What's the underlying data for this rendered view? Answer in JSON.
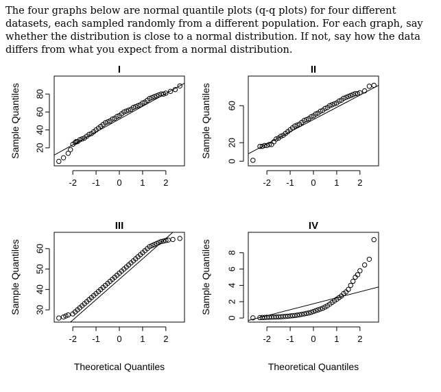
{
  "question": {
    "text": "The four graphs below are normal quantile plots (q-q plots) for four different datasets, each sampled randomly from a different population. For each graph, say whether the distribution is close to a normal distribution. If not, say how the data differs from what you expect from a normal distribution."
  },
  "colors": {
    "ink": "#000000",
    "background": "#ffffff"
  },
  "chart_data": [
    {
      "type": "scatter",
      "title": "I",
      "xlabel": "",
      "ylabel": "Sample Quantiles",
      "xticks": [
        "-2",
        "-1",
        "0",
        "1",
        "2"
      ],
      "yticks": [
        "20",
        "40",
        "60",
        "80"
      ],
      "xlim": [
        -2.8,
        2.8
      ],
      "ylim": [
        0,
        100
      ],
      "reference_line": {
        "x": [
          -2.8,
          2.8
        ],
        "y": [
          12,
          92
        ]
      },
      "x": [
        -2.6,
        -2.4,
        -2.2,
        -2.1,
        -2.0,
        -1.9,
        -1.85,
        -1.8,
        -1.7,
        -1.6,
        -1.5,
        -1.4,
        -1.3,
        -1.2,
        -1.1,
        -1.0,
        -0.9,
        -0.8,
        -0.7,
        -0.6,
        -0.5,
        -0.4,
        -0.3,
        -0.2,
        -0.1,
        0.0,
        0.1,
        0.2,
        0.3,
        0.4,
        0.5,
        0.6,
        0.7,
        0.8,
        0.9,
        1.0,
        1.1,
        1.2,
        1.3,
        1.4,
        1.5,
        1.6,
        1.7,
        1.8,
        1.9,
        2.0,
        2.2,
        2.4,
        2.6
      ],
      "y": [
        5,
        9,
        14,
        18,
        24,
        26,
        27,
        27,
        29,
        30,
        31,
        33,
        35,
        36,
        38,
        40,
        42,
        44,
        46,
        48,
        49,
        50,
        52,
        53,
        55,
        56,
        58,
        60,
        61,
        62,
        63,
        65,
        66,
        67,
        68,
        70,
        71,
        73,
        75,
        76,
        77,
        78,
        79,
        80,
        80,
        81,
        83,
        85,
        89
      ]
    },
    {
      "type": "scatter",
      "title": "II",
      "xlabel": "",
      "ylabel": "Sample Quantiles",
      "xticks": [
        "-2",
        "-1",
        "0",
        "1",
        "2"
      ],
      "yticks": [
        "0",
        "20",
        "60"
      ],
      "xlim": [
        -2.8,
        2.8
      ],
      "ylim": [
        -5,
        92
      ],
      "reference_line": {
        "x": [
          -2.8,
          2.8
        ],
        "y": [
          8,
          82
        ]
      },
      "x": [
        -2.6,
        -2.3,
        -2.2,
        -2.1,
        -2.0,
        -1.9,
        -1.8,
        -1.7,
        -1.6,
        -1.5,
        -1.4,
        -1.3,
        -1.2,
        -1.1,
        -1.0,
        -0.9,
        -0.8,
        -0.7,
        -0.6,
        -0.5,
        -0.4,
        -0.3,
        -0.2,
        -0.1,
        0.0,
        0.1,
        0.2,
        0.3,
        0.4,
        0.5,
        0.6,
        0.7,
        0.8,
        0.9,
        1.0,
        1.1,
        1.2,
        1.3,
        1.4,
        1.5,
        1.6,
        1.7,
        1.8,
        1.9,
        2.0,
        2.2,
        2.4,
        2.6
      ],
      "y": [
        1,
        16,
        16,
        17,
        17,
        18,
        18,
        21,
        24,
        25,
        27,
        28,
        30,
        32,
        34,
        36,
        38,
        39,
        40,
        42,
        44,
        45,
        46,
        48,
        49,
        51,
        52,
        54,
        55,
        57,
        58,
        60,
        61,
        62,
        63,
        65,
        66,
        68,
        69,
        70,
        71,
        72,
        73,
        73,
        74,
        76,
        81,
        82
      ]
    },
    {
      "type": "scatter",
      "title": "III",
      "xlabel": "Theoretical Quantiles",
      "ylabel": "Sample Quantiles",
      "xticks": [
        "-2",
        "-1",
        "0",
        "1",
        "2"
      ],
      "yticks": [
        "30",
        "40",
        "50",
        "60"
      ],
      "xlim": [
        -2.8,
        2.8
      ],
      "ylim": [
        24,
        68
      ],
      "reference_line": {
        "x": [
          -2.1,
          2.3
        ],
        "y": [
          24,
          68
        ]
      },
      "x": [
        -2.6,
        -2.4,
        -2.3,
        -2.2,
        -2.0,
        -1.9,
        -1.8,
        -1.7,
        -1.6,
        -1.5,
        -1.4,
        -1.3,
        -1.2,
        -1.1,
        -1.0,
        -0.9,
        -0.8,
        -0.7,
        -0.6,
        -0.5,
        -0.4,
        -0.3,
        -0.2,
        -0.1,
        0.0,
        0.1,
        0.2,
        0.3,
        0.4,
        0.5,
        0.6,
        0.7,
        0.8,
        0.9,
        1.0,
        1.1,
        1.2,
        1.3,
        1.4,
        1.5,
        1.6,
        1.7,
        1.8,
        1.9,
        2.0,
        2.1,
        2.3,
        2.6
      ],
      "y": [
        26,
        26.5,
        27,
        27.5,
        28,
        29,
        30,
        31,
        32,
        33,
        34,
        35,
        36,
        37,
        38,
        39,
        40,
        41,
        42,
        43,
        44,
        45,
        46,
        47,
        48,
        49,
        50,
        51,
        52,
        53,
        54,
        55,
        56,
        57,
        58,
        59,
        60,
        61,
        61.5,
        62,
        62.5,
        63,
        63.5,
        63.7,
        64,
        64.2,
        64.5,
        65
      ]
    },
    {
      "type": "scatter",
      "title": "IV",
      "xlabel": "Theoretical Quantiles",
      "ylabel": "Sample Quantiles",
      "xticks": [
        "-2",
        "-1",
        "0",
        "1",
        "2"
      ],
      "yticks": [
        "0",
        "2",
        "4",
        "6",
        "8"
      ],
      "xlim": [
        -2.8,
        2.8
      ],
      "ylim": [
        -0.5,
        10.5
      ],
      "reference_line": {
        "x": [
          -2.8,
          2.8
        ],
        "y": [
          -0.3,
          3.8
        ]
      },
      "x": [
        -2.6,
        -2.3,
        -2.2,
        -2.1,
        -2.0,
        -1.9,
        -1.8,
        -1.7,
        -1.6,
        -1.5,
        -1.4,
        -1.3,
        -1.2,
        -1.1,
        -1.0,
        -0.9,
        -0.8,
        -0.7,
        -0.6,
        -0.5,
        -0.4,
        -0.3,
        -0.2,
        -0.1,
        0.0,
        0.1,
        0.2,
        0.3,
        0.4,
        0.5,
        0.6,
        0.7,
        0.8,
        0.9,
        1.0,
        1.1,
        1.2,
        1.3,
        1.4,
        1.5,
        1.6,
        1.7,
        1.8,
        1.9,
        2.0,
        2.2,
        2.4,
        2.6
      ],
      "y": [
        0.02,
        0.05,
        0.06,
        0.07,
        0.08,
        0.09,
        0.1,
        0.11,
        0.12,
        0.14,
        0.16,
        0.18,
        0.2,
        0.22,
        0.25,
        0.28,
        0.31,
        0.35,
        0.4,
        0.45,
        0.5,
        0.56,
        0.62,
        0.7,
        0.8,
        0.9,
        1.0,
        1.1,
        1.2,
        1.35,
        1.5,
        1.7,
        1.9,
        2.1,
        2.3,
        2.5,
        2.7,
        3.0,
        3.2,
        3.5,
        4.0,
        4.5,
        5.0,
        5.3,
        5.8,
        6.5,
        7.2,
        9.6
      ]
    }
  ]
}
